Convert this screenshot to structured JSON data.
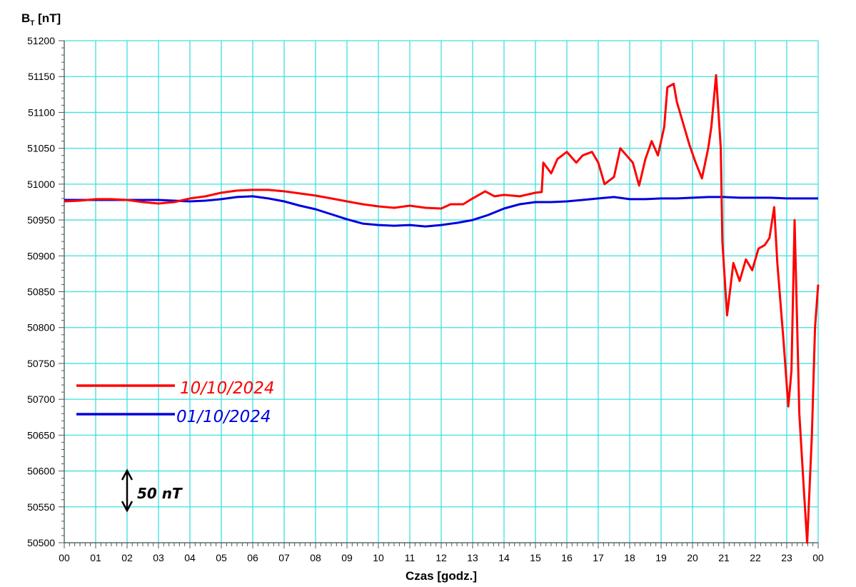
{
  "chart_data": {
    "type": "line",
    "ylabel": "B",
    "ylabel_sub": "T",
    "ylabel_unit": "[nT]",
    "xlabel": "Czas [godz.]",
    "ylim": [
      50500,
      51200
    ],
    "xlim": [
      0,
      24
    ],
    "y_ticks": [
      "50500",
      "50550",
      "50600",
      "50650",
      "50700",
      "50750",
      "50800",
      "50850",
      "50900",
      "50950",
      "51000",
      "51050",
      "51100",
      "51150",
      "51200"
    ],
    "x_ticks": [
      "00",
      "01",
      "02",
      "03",
      "04",
      "05",
      "06",
      "07",
      "08",
      "09",
      "10",
      "11",
      "12",
      "13",
      "14",
      "15",
      "16",
      "17",
      "18",
      "19",
      "20",
      "21",
      "22",
      "23",
      "00"
    ],
    "grid": true,
    "grid_color": "#3de0e0",
    "legend_position": "left-middle",
    "scale_annotation": "50 nT",
    "series": [
      {
        "name": "10/10/2024",
        "color": "#ff0000",
        "points": [
          [
            0,
            50976
          ],
          [
            0.5,
            50977
          ],
          [
            1,
            50979
          ],
          [
            1.5,
            50979
          ],
          [
            2,
            50978
          ],
          [
            2.5,
            50975
          ],
          [
            3,
            50973
          ],
          [
            3.5,
            50975
          ],
          [
            4,
            50980
          ],
          [
            4.5,
            50983
          ],
          [
            5,
            50988
          ],
          [
            5.5,
            50991
          ],
          [
            6,
            50992
          ],
          [
            6.5,
            50992
          ],
          [
            7,
            50990
          ],
          [
            7.5,
            50987
          ],
          [
            8,
            50984
          ],
          [
            8.5,
            50980
          ],
          [
            9,
            50976
          ],
          [
            9.5,
            50972
          ],
          [
            10,
            50969
          ],
          [
            10.5,
            50967
          ],
          [
            11,
            50970
          ],
          [
            11.5,
            50967
          ],
          [
            12,
            50966
          ],
          [
            12.3,
            50972
          ],
          [
            12.7,
            50972
          ],
          [
            13,
            50980
          ],
          [
            13.4,
            50990
          ],
          [
            13.7,
            50983
          ],
          [
            14,
            50985
          ],
          [
            14.5,
            50983
          ],
          [
            15,
            50988
          ],
          [
            15.2,
            50989
          ],
          [
            15.25,
            51030
          ],
          [
            15.5,
            51015
          ],
          [
            15.7,
            51035
          ],
          [
            16,
            51045
          ],
          [
            16.3,
            51030
          ],
          [
            16.5,
            51040
          ],
          [
            16.8,
            51045
          ],
          [
            17,
            51030
          ],
          [
            17.2,
            51000
          ],
          [
            17.5,
            51010
          ],
          [
            17.7,
            51050
          ],
          [
            17.9,
            51040
          ],
          [
            18.1,
            51030
          ],
          [
            18.3,
            50998
          ],
          [
            18.5,
            51035
          ],
          [
            18.7,
            51060
          ],
          [
            18.9,
            51040
          ],
          [
            19.1,
            51080
          ],
          [
            19.2,
            51135
          ],
          [
            19.4,
            51140
          ],
          [
            19.5,
            51115
          ],
          [
            19.7,
            51085
          ],
          [
            19.9,
            51055
          ],
          [
            20.1,
            51030
          ],
          [
            20.3,
            51008
          ],
          [
            20.5,
            51050
          ],
          [
            20.6,
            51080
          ],
          [
            20.75,
            51152
          ],
          [
            20.9,
            51050
          ],
          [
            20.95,
            50920
          ],
          [
            21.1,
            50817
          ],
          [
            21.3,
            50890
          ],
          [
            21.5,
            50865
          ],
          [
            21.7,
            50895
          ],
          [
            21.9,
            50880
          ],
          [
            22.1,
            50910
          ],
          [
            22.3,
            50915
          ],
          [
            22.45,
            50925
          ],
          [
            22.6,
            50968
          ],
          [
            22.7,
            50890
          ],
          [
            22.9,
            50780
          ],
          [
            23.05,
            50690
          ],
          [
            23.15,
            50740
          ],
          [
            23.25,
            50950
          ],
          [
            23.4,
            50680
          ],
          [
            23.55,
            50570
          ],
          [
            23.65,
            50500
          ],
          [
            23.8,
            50650
          ],
          [
            23.9,
            50800
          ],
          [
            24,
            50860
          ]
        ]
      },
      {
        "name": "01/10/2024",
        "color": "#0000dd",
        "points": [
          [
            0,
            50978
          ],
          [
            0.5,
            50978
          ],
          [
            1,
            50978
          ],
          [
            1.5,
            50978
          ],
          [
            2,
            50978
          ],
          [
            2.5,
            50978
          ],
          [
            3,
            50978
          ],
          [
            3.5,
            50977
          ],
          [
            4,
            50976
          ],
          [
            4.5,
            50977
          ],
          [
            5,
            50979
          ],
          [
            5.5,
            50982
          ],
          [
            6,
            50983
          ],
          [
            6.5,
            50980
          ],
          [
            7,
            50976
          ],
          [
            7.5,
            50970
          ],
          [
            8,
            50965
          ],
          [
            8.5,
            50958
          ],
          [
            9,
            50951
          ],
          [
            9.5,
            50945
          ],
          [
            10,
            50943
          ],
          [
            10.5,
            50942
          ],
          [
            11,
            50943
          ],
          [
            11.5,
            50941
          ],
          [
            12,
            50943
          ],
          [
            12.5,
            50946
          ],
          [
            13,
            50950
          ],
          [
            13.5,
            50957
          ],
          [
            14,
            50966
          ],
          [
            14.5,
            50972
          ],
          [
            15,
            50975
          ],
          [
            15.5,
            50975
          ],
          [
            16,
            50976
          ],
          [
            16.5,
            50978
          ],
          [
            17,
            50980
          ],
          [
            17.5,
            50982
          ],
          [
            18,
            50979
          ],
          [
            18.5,
            50979
          ],
          [
            19,
            50980
          ],
          [
            19.5,
            50980
          ],
          [
            20,
            50981
          ],
          [
            20.5,
            50982
          ],
          [
            21,
            50982
          ],
          [
            21.5,
            50981
          ],
          [
            22,
            50981
          ],
          [
            22.5,
            50981
          ],
          [
            23,
            50980
          ],
          [
            23.5,
            50980
          ],
          [
            24,
            50980
          ]
        ]
      }
    ]
  }
}
